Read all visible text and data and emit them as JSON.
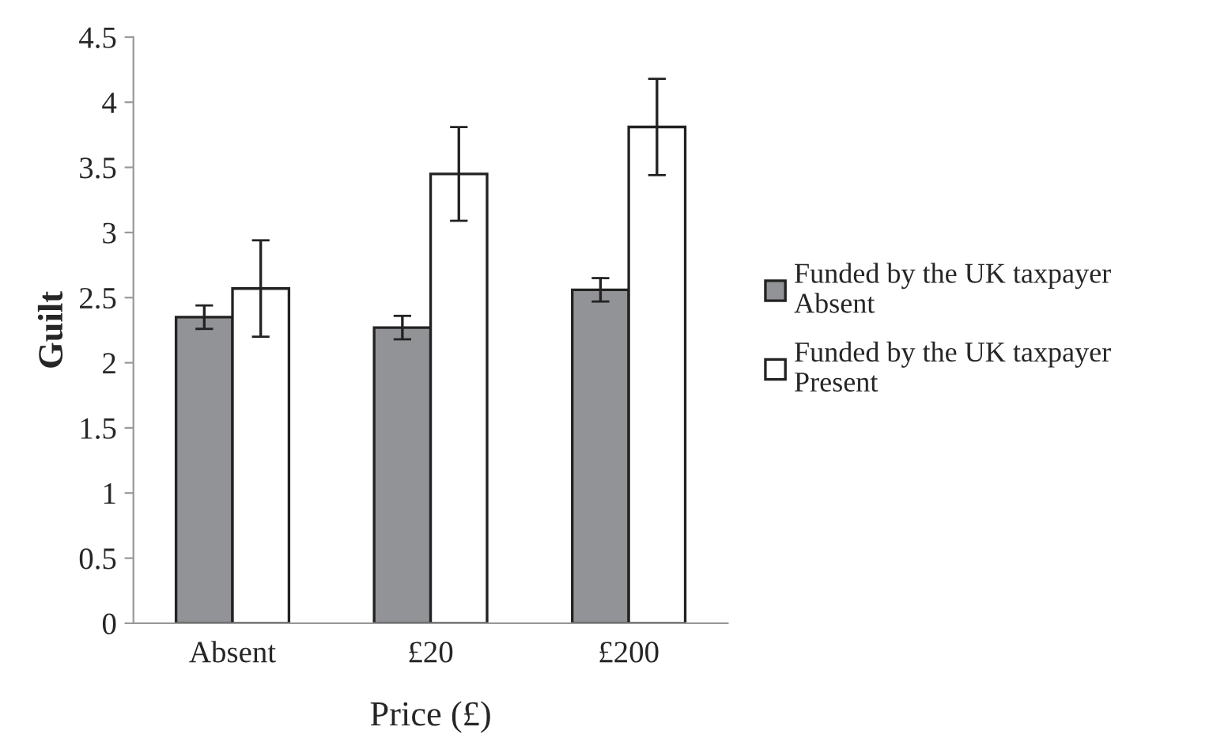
{
  "chart_data": {
    "type": "bar",
    "xlabel": "Price (£)",
    "ylabel": "Guilt",
    "categories": [
      "Absent",
      "£20",
      "£200"
    ],
    "series": [
      {
        "name": "Funded by the UK taxpayer\nAbsent",
        "color": "#929396",
        "values": [
          2.35,
          2.27,
          2.56
        ],
        "errors": [
          0.09,
          0.09,
          0.09
        ]
      },
      {
        "name": "Funded by the UK taxpayer\nPresent",
        "color": "#ffffff",
        "values": [
          2.57,
          3.45,
          3.81
        ],
        "errors": [
          0.37,
          0.36,
          0.37
        ]
      }
    ],
    "ylim": [
      0,
      4.5
    ],
    "yticks": [
      0,
      0.5,
      1,
      1.5,
      2,
      2.5,
      3,
      3.5,
      4,
      4.5
    ],
    "grid": false,
    "legend": "right"
  }
}
